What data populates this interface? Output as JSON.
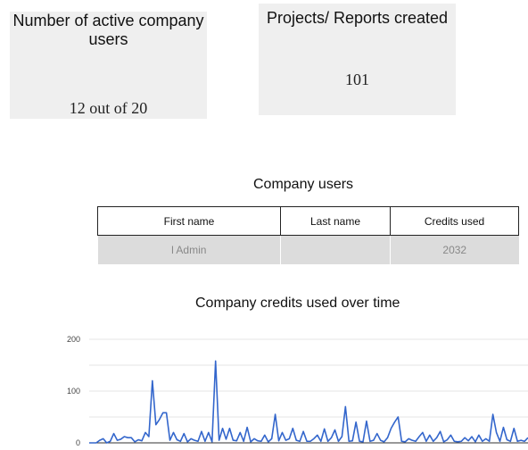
{
  "cards": {
    "active_users": {
      "label": "Number of active company users",
      "value": "12 out of 20"
    },
    "projects_reports": {
      "label": "Projects/ Reports created",
      "value": "101"
    }
  },
  "users_section": {
    "title": "Company users",
    "columns": [
      "First name",
      "Last name",
      "Credits used"
    ],
    "rows": [
      {
        "first_name": "l Admin",
        "last_name": "",
        "credits_used": "2032"
      }
    ]
  },
  "chart_data": {
    "type": "line",
    "title": "Company credits used over time",
    "xlabel": "",
    "ylabel": "",
    "ylim": [
      0,
      200
    ],
    "yticks": [
      "0",
      "100",
      "200"
    ],
    "grid": true,
    "legend": "none",
    "colors": {
      "line": "#3366cc",
      "grid": "#e4e4e4",
      "axis": "#333333"
    },
    "series": [
      {
        "values": [
          0,
          0,
          0,
          5,
          8,
          0,
          3,
          18,
          5,
          7,
          12,
          10,
          10,
          2,
          6,
          4,
          20,
          12,
          120,
          35,
          45,
          58,
          58,
          5,
          20,
          6,
          3,
          18,
          2,
          8,
          5,
          3,
          22,
          3,
          20,
          2,
          158,
          5,
          28,
          7,
          28,
          5,
          4,
          20,
          3,
          30,
          2,
          8,
          4,
          3,
          15,
          2,
          8,
          55,
          4,
          20,
          5,
          8,
          28,
          5,
          3,
          22,
          3,
          3,
          8,
          15,
          3,
          27,
          3,
          10,
          25,
          3,
          12,
          70,
          3,
          4,
          40,
          3,
          2,
          42,
          3,
          5,
          18,
          5,
          2,
          10,
          28,
          40,
          50,
          3,
          2,
          8,
          5,
          3,
          12,
          20,
          3,
          15,
          3,
          10,
          22,
          2,
          6,
          15,
          3,
          2,
          3,
          10,
          4,
          12,
          2,
          15,
          3,
          8,
          3,
          55,
          20,
          3,
          30,
          6,
          3,
          28,
          3,
          5,
          3,
          10
        ]
      }
    ]
  }
}
